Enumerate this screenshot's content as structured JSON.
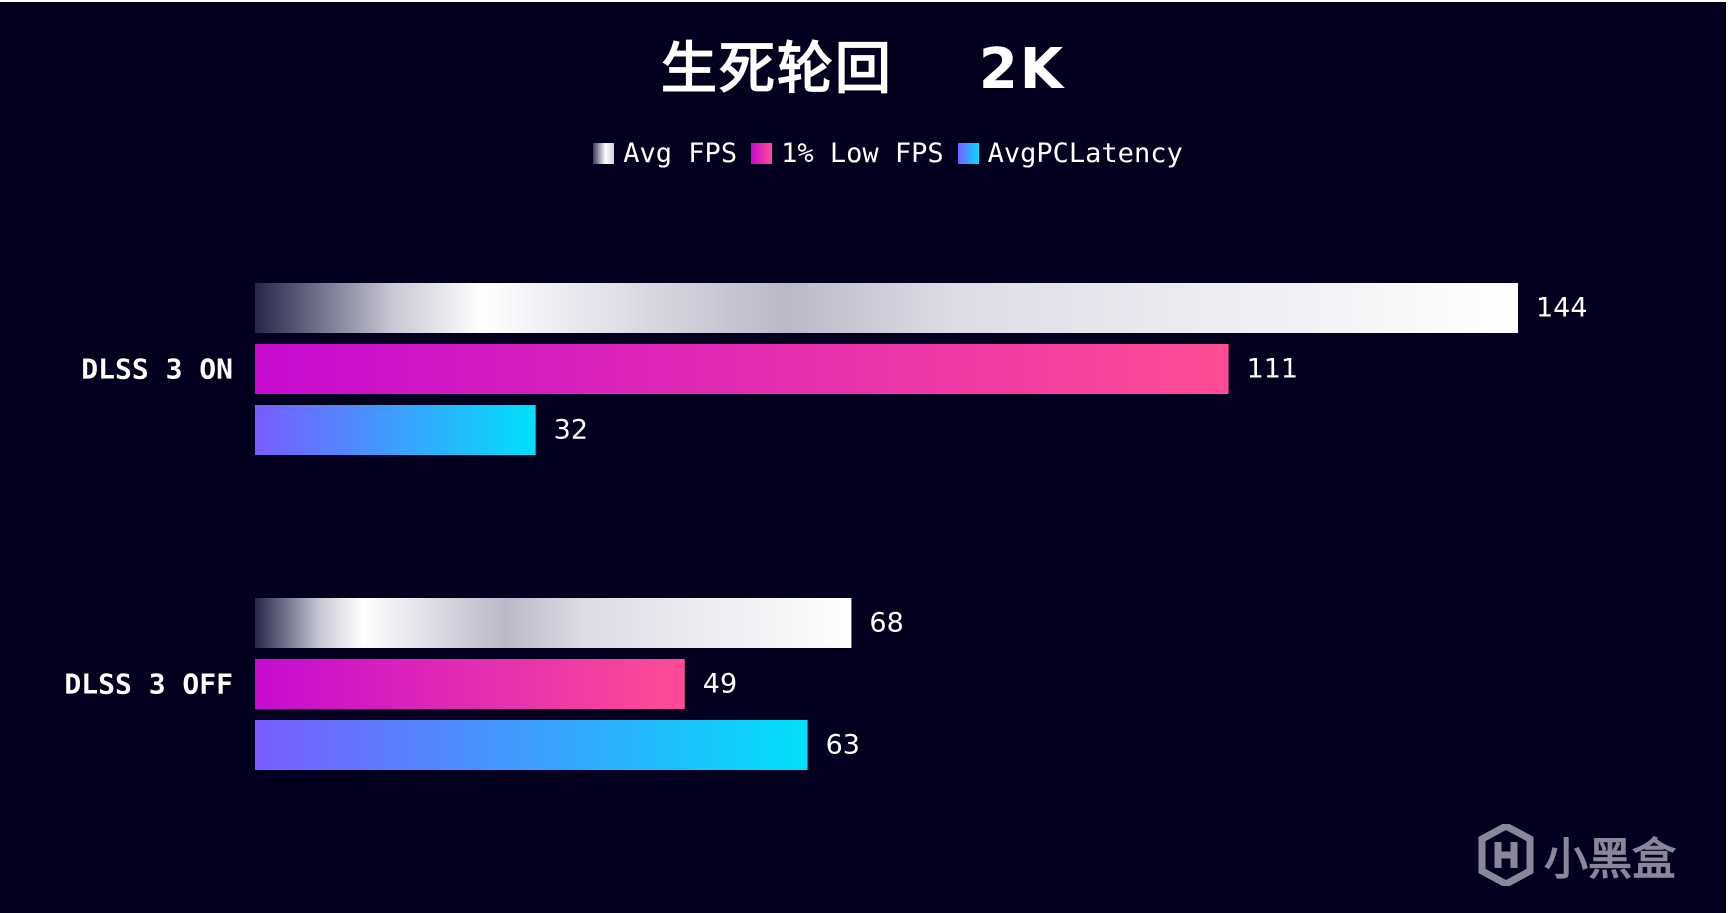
{
  "chart_data": {
    "type": "bar",
    "orientation": "horizontal",
    "title": "生死轮回    2K",
    "categories": [
      "DLSS 3 ON",
      "DLSS 3 OFF"
    ],
    "series": [
      {
        "name": "Avg FPS",
        "values": [
          144,
          68
        ]
      },
      {
        "name": "1% Low FPS",
        "values": [
          111,
          49
        ]
      },
      {
        "name": "AvgPCLatency",
        "values": [
          32,
          63
        ]
      }
    ],
    "xlim": [
      0,
      144
    ],
    "grid": false,
    "legend_position": "top-center",
    "colors": {
      "Avg FPS": [
        "#2a2a4a",
        "#ffffff",
        "#c7c7d3",
        "#ffffff"
      ],
      "1% Low FPS": [
        "#c60bd1",
        "#ff4c94"
      ],
      "AvgPCLatency": [
        "#7a5cff",
        "#00e0fb"
      ]
    }
  },
  "watermark": {
    "text": "小黑盒",
    "icon": "heybox-logo-icon"
  },
  "background_color": "#03001f"
}
